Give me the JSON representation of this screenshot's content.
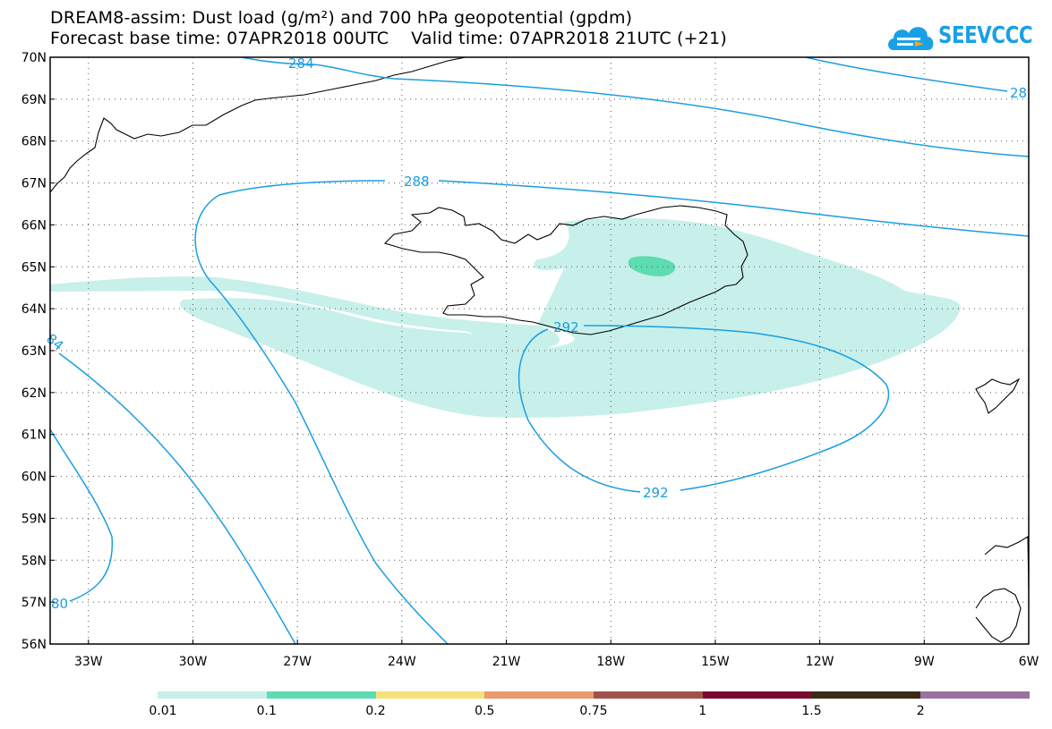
{
  "title": {
    "line1": "DREAM8-assim: Dust load (g/m²) and 700 hPa geopotential (gpdm)",
    "line2": "Forecast base time: 07APR2018 00UTC    Valid time: 07APR2018 21UTC (+21)"
  },
  "logo": {
    "text": "SEEVCCC",
    "color": "#1aa0e6",
    "icon": "cloud-arrow-icon"
  },
  "axes": {
    "lat_labels": [
      "70N",
      "69N",
      "68N",
      "67N",
      "66N",
      "65N",
      "64N",
      "63N",
      "62N",
      "61N",
      "60N",
      "59N",
      "58N",
      "57N",
      "56N"
    ],
    "lon_labels": [
      "33W",
      "30W",
      "27W",
      "24W",
      "21W",
      "18W",
      "15W",
      "12W",
      "9W",
      "6W"
    ],
    "lat_range": [
      56,
      70
    ],
    "lon_range": [
      -34.1,
      -6
    ],
    "grid": "dotted"
  },
  "contours": {
    "color": "#1a9ee0",
    "labels": [
      {
        "text": "284"
      },
      {
        "text": "28"
      },
      {
        "text": "288"
      },
      {
        "text": "292"
      },
      {
        "text": "292"
      },
      {
        "text": "84"
      },
      {
        "text": "80"
      }
    ]
  },
  "dust": {
    "colors": [
      "#c7f0ea",
      "#5cdcb0"
    ],
    "levels_shown": [
      "0.01",
      "0.1"
    ]
  },
  "colorbar": {
    "colors": [
      "#c7f0ea",
      "#5cdcb0",
      "#f5e27a",
      "#eb9a6c",
      "#a0524a",
      "#7a0a2e",
      "#3c2a14",
      "#9a72a0"
    ],
    "labels": [
      "0.01",
      "0.1",
      "0.2",
      "0.5",
      "0.75",
      "1",
      "1.5",
      "2"
    ]
  }
}
